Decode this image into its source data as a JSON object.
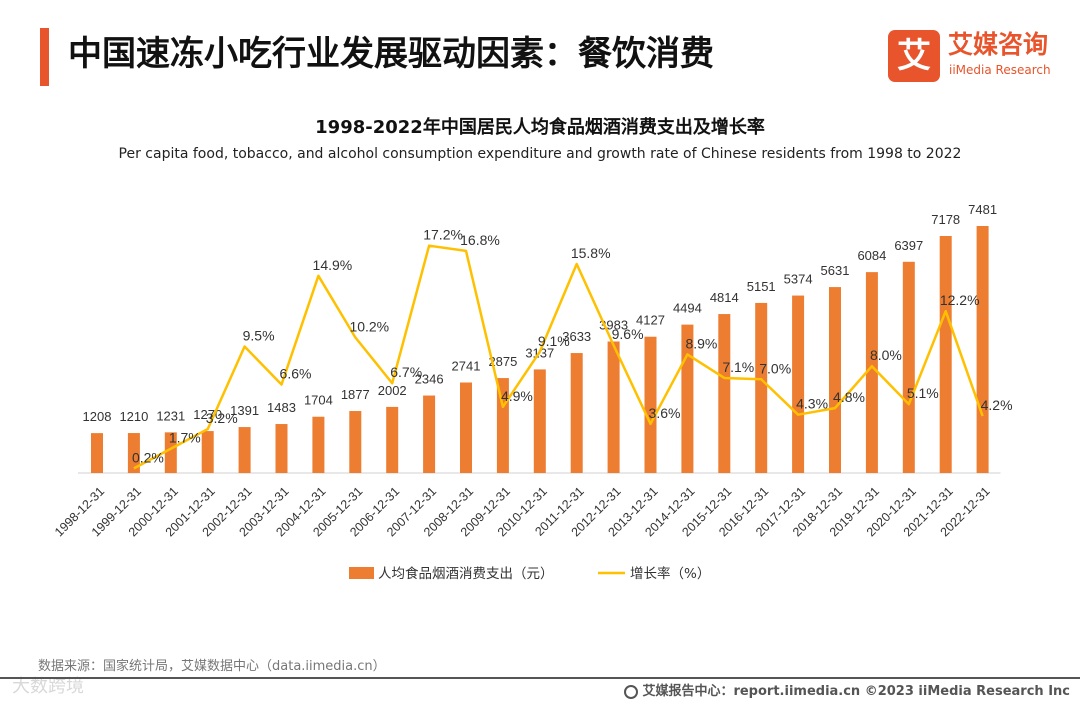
{
  "page": {
    "title": "中国速冻小吃行业发展驱动因素：餐饮消费",
    "accent_color": "#e8542b"
  },
  "logo": {
    "mark": "艾",
    "name_cn": "艾媒咨询",
    "name_en": "iiMedia Research"
  },
  "chart_data": {
    "type": "bar",
    "title": "1998-2022年中国居民人均食品烟酒消费支出及增长率",
    "subtitle": "Per capita food, tobacco, and alcohol consumption expenditure and growth rate of Chinese residents from 1998 to 2022",
    "categories": [
      "1998-12-31",
      "1999-12-31",
      "2000-12-31",
      "2001-12-31",
      "2002-12-31",
      "2003-12-31",
      "2004-12-31",
      "2005-12-31",
      "2006-12-31",
      "2007-12-31",
      "2008-12-31",
      "2009-12-31",
      "2010-12-31",
      "2011-12-31",
      "2012-12-31",
      "2013-12-31",
      "2014-12-31",
      "2015-12-31",
      "2016-12-31",
      "2017-12-31",
      "2018-12-31",
      "2019-12-31",
      "2020-12-31",
      "2021-12-31",
      "2022-12-31"
    ],
    "series": [
      {
        "name": "人均食品烟酒消费支出（元）",
        "type": "bar",
        "color": "#ed7d31",
        "values": [
          1208,
          1210,
          1231,
          1270,
          1391,
          1483,
          1704,
          1877,
          2002,
          2346,
          2741,
          2875,
          3137,
          3633,
          3983,
          4127,
          4494,
          4814,
          5151,
          5374,
          5631,
          6084,
          6397,
          7178,
          7481
        ]
      },
      {
        "name": "增长率（%）",
        "type": "line",
        "color": "#ffc000",
        "values": [
          null,
          0.2,
          1.7,
          3.2,
          9.5,
          6.6,
          14.9,
          10.2,
          6.7,
          17.2,
          16.8,
          4.9,
          9.1,
          15.8,
          9.6,
          3.6,
          8.9,
          7.1,
          7.0,
          4.3,
          4.8,
          8.0,
          5.1,
          12.2,
          4.2
        ],
        "labels": [
          "",
          "0.2%",
          "1.7%",
          "3.2%",
          "9.5%",
          "6.6%",
          "14.9%",
          "10.2%",
          "6.7%",
          "17.2%",
          "16.8%",
          "4.9%",
          "9.1%",
          "15.8%",
          "9.6%",
          "3.6%",
          "8.9%",
          "7.1%",
          "7.0%",
          "4.3%",
          "4.8%",
          "8.0%",
          "5.1%",
          "12.2%",
          "4.2%"
        ]
      }
    ],
    "bar_ylim": [
      0,
      8000
    ],
    "line_ylim": [
      0,
      18
    ],
    "legend_position": "bottom",
    "grid": false
  },
  "footer": {
    "source": "数据来源：国家统计局，艾媒数据中心（data.iimedia.cn）",
    "report": "艾媒报告中心：report.iimedia.cn    ©2023  iiMedia Research  Inc",
    "watermark": "大数跨境"
  }
}
